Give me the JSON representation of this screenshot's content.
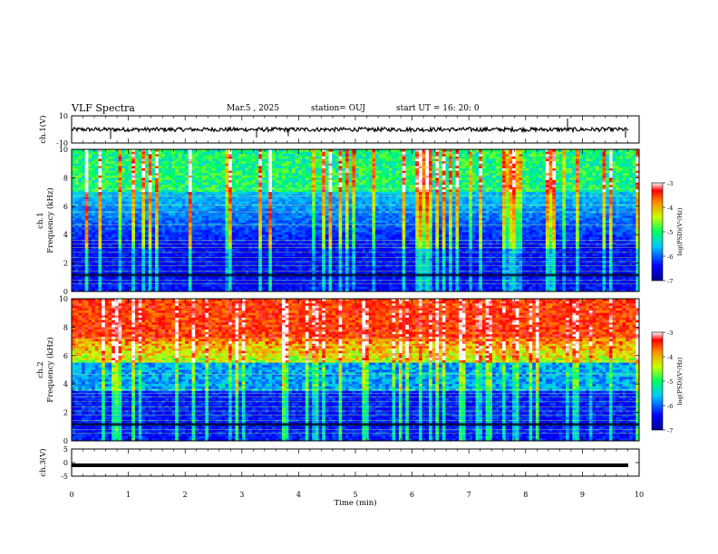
{
  "header": {
    "title": "VLF Spectra",
    "date": "Mar.5 , 2025",
    "station": "station= OUJ",
    "start_ut": "start UT = 16: 20: 0"
  },
  "chart_data": [
    {
      "type": "line",
      "ylabel": "ch.1(V)",
      "ylim": [
        -10,
        10
      ],
      "yticks": [
        "10",
        "-10"
      ],
      "xlim": [
        0,
        10
      ],
      "description_values": {
        "baseline": 0
      }
    },
    {
      "type": "heatmap",
      "ylabel": "ch.1 Frequency (kHz)",
      "ylim": [
        0,
        10
      ],
      "yticks": [
        "0",
        "2",
        "4",
        "6",
        "8",
        "10"
      ],
      "xlim": [
        0,
        10
      ],
      "colorbar": {
        "label": "log(PSD)(V²/Hz)",
        "range": [
          -7,
          -3
        ],
        "ticks": [
          "-3",
          "-4",
          "-5",
          "-6",
          "-7"
        ]
      }
    },
    {
      "type": "heatmap",
      "ylabel": "ch.2 Frequency (kHz)",
      "ylim": [
        0,
        10
      ],
      "yticks": [
        "0",
        "2",
        "4",
        "6",
        "8",
        "10"
      ],
      "xlim": [
        0,
        10
      ],
      "colorbar": {
        "label": "log(PSD)(V²/Hz)",
        "range": [
          -7,
          -3
        ],
        "ticks": [
          "-3",
          "-4",
          "-5",
          "-6",
          "-7"
        ]
      }
    },
    {
      "type": "line",
      "ylabel": "ch.3(V)",
      "ylim": [
        -5,
        5
      ],
      "yticks": [
        "5",
        "0",
        "-5"
      ],
      "xlim": [
        0,
        10
      ],
      "xlabel": "Time (min)",
      "xticks": [
        "0",
        "1",
        "2",
        "3",
        "4",
        "5",
        "6",
        "7",
        "8",
        "9",
        "10"
      ],
      "description_values": {
        "baseline": -1
      }
    }
  ]
}
